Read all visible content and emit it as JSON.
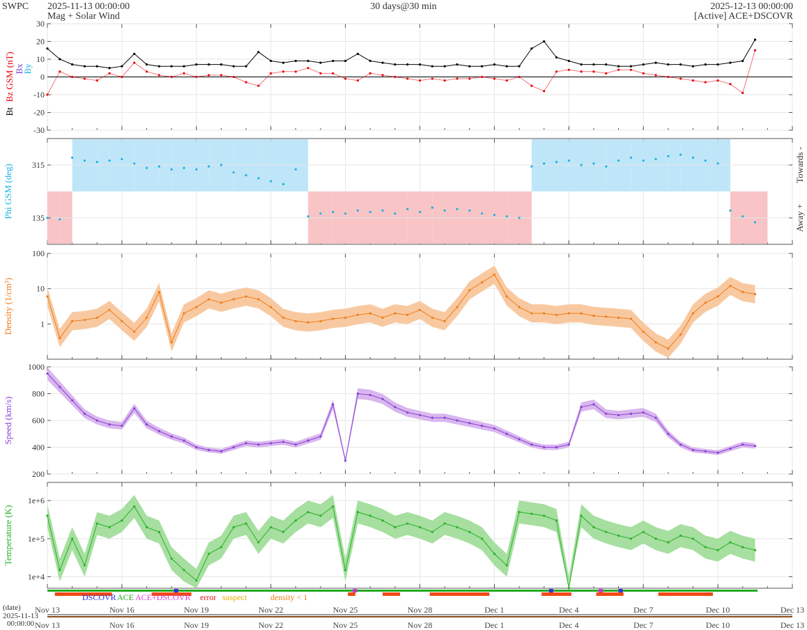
{
  "header": {
    "brand": "SWPC",
    "start": "2025-11-13 00:00:00",
    "subtitle": "Mag + Solar Wind",
    "span": "30 days@30 min",
    "end": "2025-12-13 00:00:00",
    "source": "[Active] ACE+DSCOVR"
  },
  "colors": {
    "bt": "#000000",
    "bz": "#e8000b",
    "by": "#19b2e6",
    "bx": "#7b3fd0",
    "phi": "#19b2e6",
    "phi_toward_fill": "#bfe6f8",
    "phi_away_fill": "#f8c4c6",
    "density": "#f07c1a",
    "density_fill": "#f8c9a0",
    "speed": "#8a3fd6",
    "speed_fill": "#d9b7ee",
    "temperature": "#28b028",
    "temperature_fill": "#a6df9f",
    "axis": "#555555",
    "grid": "#e6e6e6",
    "zero": "#000000"
  },
  "legend": {
    "bt": "Bt",
    "bz": "Bz",
    "gsm": "GSM (nT)",
    "bx": "Bx",
    "by": "By",
    "phi_toward": "Towards -",
    "phi_away": "Away +",
    "dscovr": "DSCOVR",
    "ace": "ACE",
    "ace_dscovr": "ACE+DSCOVR",
    "error": "error",
    "suspect": "suspect",
    "density_lt1": "density < 1"
  },
  "bottom": {
    "date_label": "(date)",
    "start_date": "2025-11-13",
    "start_time": "00:00:00"
  },
  "chart_data": [
    {
      "panel": "magnetic-field",
      "type": "line",
      "ylabel": "Bz GSM (nT)",
      "ylim": [
        -30,
        30
      ],
      "ticks": [
        "30",
        "20",
        "10",
        "0",
        "-10",
        "-20",
        "-30"
      ],
      "grid": true,
      "x_days": [
        0,
        0.5,
        1,
        1.5,
        2,
        2.5,
        3,
        3.5,
        4,
        4.5,
        5,
        5.5,
        6,
        6.5,
        7,
        7.5,
        8,
        8.5,
        9,
        9.5,
        10,
        10.5,
        11,
        11.5,
        12,
        12.5,
        13,
        13.5,
        14,
        14.5,
        15,
        15.5,
        16,
        16.5,
        17,
        17.5,
        18,
        18.5,
        19,
        19.5,
        20,
        20.5,
        21,
        21.5,
        22,
        22.5,
        23,
        23.5,
        24,
        24.5,
        25,
        25.5,
        26,
        26.5,
        27,
        27.5,
        28,
        28.5
      ],
      "series": [
        {
          "name": "Bt",
          "values": [
            16,
            10,
            7,
            6,
            6,
            5,
            6,
            13,
            7,
            6,
            6,
            6,
            7,
            7,
            7,
            6,
            6,
            14,
            9,
            8,
            9,
            9,
            8,
            9,
            9,
            13,
            9,
            8,
            7,
            7,
            7,
            6,
            6,
            7,
            6,
            6,
            7,
            6,
            6,
            16,
            20,
            11,
            9,
            7,
            7,
            7,
            6,
            6,
            7,
            8,
            7,
            7,
            6,
            7,
            7,
            8,
            9,
            21
          ]
        },
        {
          "name": "Bz",
          "values": [
            -10,
            3,
            0,
            -1,
            -2,
            2,
            0,
            8,
            3,
            1,
            0,
            2,
            0,
            1,
            1,
            0,
            -3,
            -5,
            2,
            3,
            3,
            5,
            2,
            2,
            -1,
            -2,
            2,
            1,
            0,
            -1,
            -2,
            -1,
            -2,
            -1,
            -1,
            0,
            -1,
            -2,
            0,
            -5,
            -8,
            3,
            4,
            3,
            3,
            2,
            4,
            4,
            2,
            1,
            0,
            -1,
            -2,
            -3,
            -2,
            -4,
            -9,
            15
          ]
        }
      ]
    },
    {
      "panel": "phi",
      "type": "scatter",
      "ylabel": "Phi GSM (deg)",
      "ylim": [
        45,
        405
      ],
      "ticks": [
        "315",
        "135"
      ],
      "grid": true,
      "x_days": [
        0,
        0.5,
        1,
        1.5,
        2,
        2.5,
        3,
        3.5,
        4,
        4.5,
        5,
        5.5,
        6,
        6.5,
        7,
        7.5,
        8,
        8.5,
        9,
        9.5,
        10,
        10.5,
        11,
        11.5,
        12,
        12.5,
        13,
        13.5,
        14,
        14.5,
        15,
        15.5,
        16,
        16.5,
        17,
        17.5,
        18,
        18.5,
        19,
        19.5,
        20,
        20.5,
        21,
        21.5,
        22,
        22.5,
        23,
        23.5,
        24,
        24.5,
        25,
        25.5,
        26,
        26.5,
        27,
        27.5,
        28,
        28.5
      ],
      "values": [
        135,
        130,
        340,
        330,
        325,
        330,
        335,
        320,
        305,
        310,
        300,
        305,
        300,
        310,
        315,
        290,
        280,
        270,
        260,
        250,
        300,
        140,
        150,
        155,
        150,
        160,
        155,
        160,
        150,
        165,
        155,
        170,
        160,
        165,
        160,
        150,
        145,
        140,
        135,
        310,
        320,
        325,
        330,
        315,
        320,
        310,
        330,
        340,
        330,
        335,
        345,
        350,
        340,
        330,
        320,
        160,
        140,
        120
      ]
    },
    {
      "panel": "density",
      "type": "line",
      "ylabel": "Density (1/cm³)",
      "scale": "log",
      "ylim": [
        0.1,
        100
      ],
      "ticks": [
        "100",
        "10",
        "1"
      ],
      "grid": true,
      "x_days": [
        0,
        0.5,
        1,
        1.5,
        2,
        2.5,
        3,
        3.5,
        4,
        4.5,
        5,
        5.5,
        6,
        6.5,
        7,
        7.5,
        8,
        8.5,
        9,
        9.5,
        10,
        10.5,
        11,
        11.5,
        12,
        12.5,
        13,
        13.5,
        14,
        14.5,
        15,
        15.5,
        16,
        16.5,
        17,
        17.5,
        18,
        18.5,
        19,
        19.5,
        20,
        20.5,
        21,
        21.5,
        22,
        22.5,
        23,
        23.5,
        24,
        24.5,
        25,
        25.5,
        26,
        26.5,
        27,
        27.5,
        28,
        28.5
      ],
      "values": [
        6,
        0.4,
        1.2,
        1.3,
        1.5,
        2.5,
        1.2,
        0.6,
        1.5,
        8,
        0.3,
        2,
        3,
        5,
        4,
        5,
        6,
        5,
        3,
        1.5,
        1.2,
        1.1,
        1.2,
        1.4,
        1.5,
        1.8,
        2,
        1.5,
        2,
        1.8,
        2.5,
        1.5,
        1.2,
        3,
        9,
        15,
        25,
        6,
        3,
        2,
        2,
        1.8,
        2,
        2,
        1.7,
        1.6,
        1.5,
        1.4,
        0.6,
        0.3,
        0.2,
        0.5,
        2,
        4,
        6,
        12,
        8,
        7
      ]
    },
    {
      "panel": "speed",
      "type": "line",
      "ylabel": "Speed (km/s)",
      "ylim": [
        200,
        1000
      ],
      "ticks": [
        "1000",
        "800",
        "600",
        "400",
        "200"
      ],
      "grid": true,
      "x_days": [
        0,
        0.5,
        1,
        1.5,
        2,
        2.5,
        3,
        3.5,
        4,
        4.5,
        5,
        5.5,
        6,
        6.5,
        7,
        7.5,
        8,
        8.5,
        9,
        9.5,
        10,
        10.5,
        11,
        11.5,
        12,
        12.5,
        13,
        13.5,
        14,
        14.5,
        15,
        15.5,
        16,
        16.5,
        17,
        17.5,
        18,
        18.5,
        19,
        19.5,
        20,
        20.5,
        21,
        21.5,
        22,
        22.5,
        23,
        23.5,
        24,
        24.5,
        25,
        25.5,
        26,
        26.5,
        27,
        27.5,
        28,
        28.5
      ],
      "values": [
        950,
        850,
        750,
        650,
        600,
        570,
        560,
        690,
        570,
        520,
        480,
        450,
        400,
        380,
        370,
        400,
        430,
        420,
        430,
        440,
        420,
        450,
        480,
        720,
        300,
        800,
        790,
        760,
        700,
        660,
        640,
        620,
        620,
        600,
        580,
        560,
        540,
        500,
        460,
        420,
        400,
        400,
        420,
        700,
        720,
        650,
        640,
        650,
        660,
        620,
        500,
        420,
        380,
        370,
        360,
        390,
        420,
        410
      ]
    },
    {
      "panel": "temperature",
      "type": "line",
      "ylabel": "Temperature (K)",
      "scale": "log",
      "ylim": [
        5000,
        3000000
      ],
      "ticks": [
        "1e+6",
        "1e+5",
        "1e+4"
      ],
      "grid": true,
      "x_days": [
        0,
        0.5,
        1,
        1.5,
        2,
        2.5,
        3,
        3.5,
        4,
        4.5,
        5,
        5.5,
        6,
        6.5,
        7,
        7.5,
        8,
        8.5,
        9,
        9.5,
        10,
        10.5,
        11,
        11.5,
        12,
        12.5,
        13,
        13.5,
        14,
        14.5,
        15,
        15.5,
        16,
        16.5,
        17,
        17.5,
        18,
        18.5,
        19,
        19.5,
        20,
        20.5,
        21,
        21.5,
        22,
        22.5,
        23,
        23.5,
        24,
        24.5,
        25,
        25.5,
        26,
        26.5,
        27,
        27.5,
        28,
        28.5
      ],
      "values": [
        400000,
        15000,
        100000,
        20000,
        250000,
        200000,
        300000,
        700000,
        200000,
        150000,
        30000,
        15000,
        8000,
        40000,
        60000,
        200000,
        250000,
        80000,
        200000,
        150000,
        300000,
        500000,
        400000,
        700000,
        15000,
        500000,
        400000,
        300000,
        200000,
        250000,
        200000,
        150000,
        250000,
        200000,
        150000,
        100000,
        40000,
        20000,
        500000,
        450000,
        400000,
        300000,
        5000,
        400000,
        200000,
        150000,
        120000,
        100000,
        150000,
        100000,
        80000,
        120000,
        100000,
        60000,
        50000,
        80000,
        60000,
        50000
      ]
    }
  ],
  "x_axis": {
    "labels": [
      "Nov 13",
      "Nov 16",
      "Nov 19",
      "Nov 22",
      "Nov 25",
      "Nov 28",
      "Dec 1",
      "Dec 4",
      "Dec 7",
      "Dec 10",
      "Dec 13"
    ],
    "positions_days": [
      0,
      3,
      6,
      9,
      12,
      15,
      18,
      21,
      24,
      27,
      30
    ],
    "domain_days": [
      0,
      30
    ]
  }
}
